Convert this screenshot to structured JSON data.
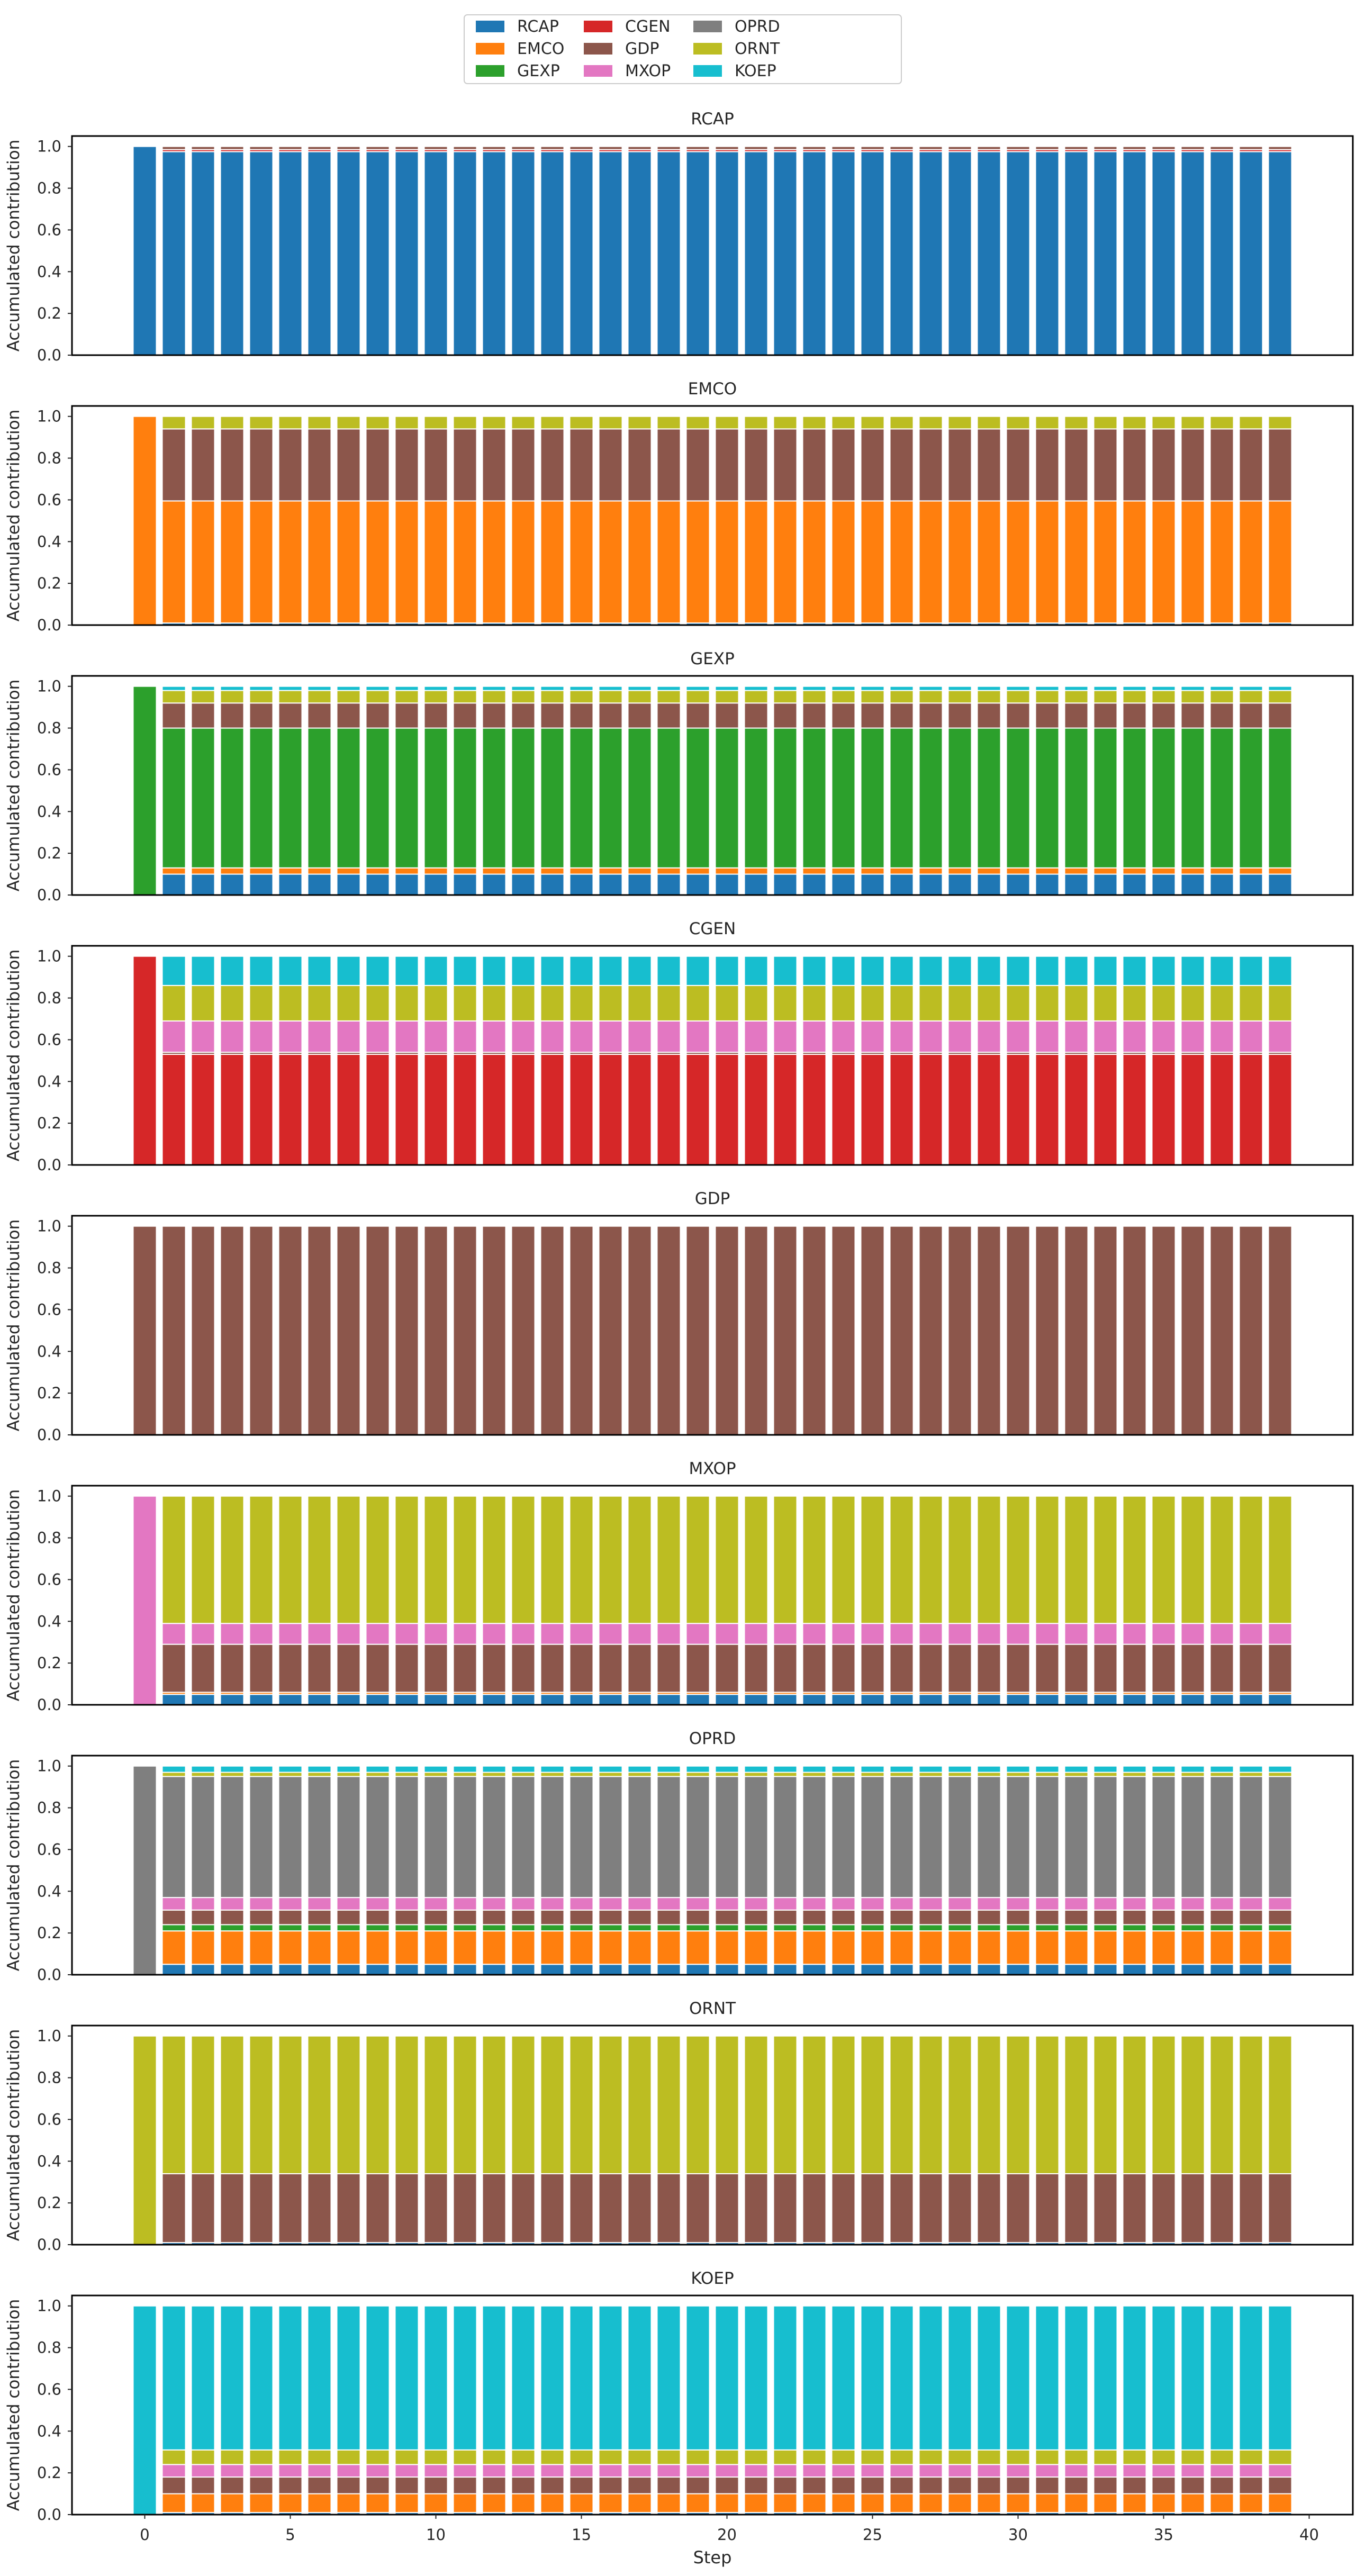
{
  "chart_data": {
    "type": "bar",
    "stacked": true,
    "x": [
      0,
      1,
      2,
      3,
      4,
      5,
      6,
      7,
      8,
      9,
      10,
      11,
      12,
      13,
      14,
      15,
      16,
      17,
      18,
      19,
      20,
      21,
      22,
      23,
      24,
      25,
      26,
      27,
      28,
      29,
      30,
      31,
      32,
      33,
      34,
      35,
      36,
      37,
      38,
      39
    ],
    "xlabel": "Step",
    "ylabel": "Accumulated contribution",
    "xlim": [
      -2.5,
      41.5
    ],
    "ylim": [
      0,
      1.05
    ],
    "xticks": [
      0,
      5,
      10,
      15,
      20,
      25,
      30,
      35,
      40
    ],
    "yticks": [
      0.0,
      0.2,
      0.4,
      0.6,
      0.8,
      1.0
    ],
    "grid": false,
    "legend": {
      "placement": "top-center",
      "ncol": 4,
      "entries": [
        {
          "name": "RCAP",
          "color": "#1f77b4"
        },
        {
          "name": "EMCO",
          "color": "#ff7f0e"
        },
        {
          "name": "GEXP",
          "color": "#2ca02c"
        },
        {
          "name": "CGEN",
          "color": "#d62728"
        },
        {
          "name": "GDP",
          "color": "#8c564b"
        },
        {
          "name": "MXOP",
          "color": "#e377c2"
        },
        {
          "name": "OPRD",
          "color": "#7f7f7f"
        },
        {
          "name": "ORNT",
          "color": "#bcbd22"
        },
        {
          "name": "KOEP",
          "color": "#17becf"
        }
      ]
    },
    "panels": [
      {
        "title": "RCAP",
        "step0": {
          "RCAP": 1.0
        },
        "steady": {
          "RCAP": 0.975,
          "CGEN": 0.01,
          "GDP": 0.015
        }
      },
      {
        "title": "EMCO",
        "step0": {
          "EMCO": 1.0
        },
        "steady": {
          "RCAP": 0.01,
          "EMCO": 0.585,
          "GDP": 0.345,
          "ORNT": 0.06
        }
      },
      {
        "title": "GEXP",
        "step0": {
          "GEXP": 1.0
        },
        "steady": {
          "RCAP": 0.1,
          "EMCO": 0.03,
          "GEXP": 0.67,
          "GDP": 0.12,
          "ORNT": 0.06,
          "KOEP": 0.02
        }
      },
      {
        "title": "CGEN",
        "step0": {
          "CGEN": 1.0
        },
        "steady": {
          "CGEN": 0.53,
          "GDP": 0.01,
          "MXOP": 0.15,
          "ORNT": 0.17,
          "KOEP": 0.14
        }
      },
      {
        "title": "GDP",
        "step0": {
          "GDP": 1.0
        },
        "steady": {
          "GDP": 1.0
        }
      },
      {
        "title": "MXOP",
        "step0": {
          "MXOP": 1.0
        },
        "steady": {
          "RCAP": 0.05,
          "EMCO": 0.01,
          "GDP": 0.23,
          "MXOP": 0.1,
          "ORNT": 0.61
        }
      },
      {
        "title": "OPRD",
        "step0": {
          "OPRD": 1.0
        },
        "steady": {
          "RCAP": 0.05,
          "EMCO": 0.16,
          "GEXP": 0.03,
          "GDP": 0.07,
          "MXOP": 0.06,
          "OPRD": 0.58,
          "ORNT": 0.02,
          "KOEP": 0.03
        }
      },
      {
        "title": "ORNT",
        "step0": {
          "ORNT": 1.0
        },
        "steady": {
          "RCAP": 0.01,
          "GDP": 0.33,
          "ORNT": 0.66
        }
      },
      {
        "title": "KOEP",
        "step0": {
          "KOEP": 1.0
        },
        "steady": {
          "RCAP": 0.01,
          "EMCO": 0.09,
          "GDP": 0.08,
          "MXOP": 0.06,
          "ORNT": 0.07,
          "KOEP": 0.69
        }
      }
    ]
  }
}
